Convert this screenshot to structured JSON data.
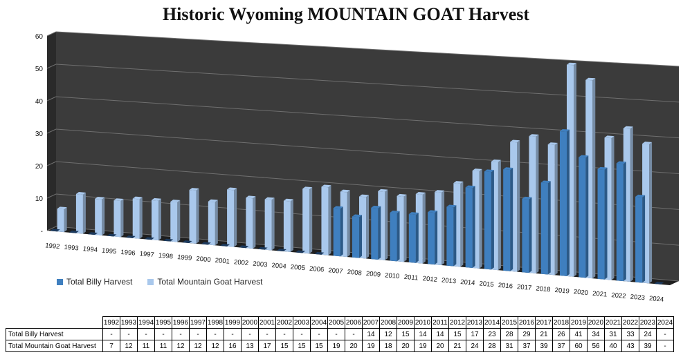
{
  "colors": {
    "billy": "#3f7fbf",
    "goat": "#a9c8ec",
    "wall": "#3b3b3b",
    "floor": "#1f1f1f",
    "grid": "#6f6f6f"
  },
  "chart_data": {
    "type": "bar",
    "title": "Historic Wyoming MOUNTAIN GOAT Harvest",
    "categories": [
      "1992",
      "1993",
      "1994",
      "1995",
      "1996",
      "1997",
      "1998",
      "1999",
      "2000",
      "2001",
      "2002",
      "2003",
      "2004",
      "2005",
      "2006",
      "2007",
      "2008",
      "2009",
      "2010",
      "2011",
      "2012",
      "2013",
      "2014",
      "2015",
      "2016",
      "2017",
      "2018",
      "2019",
      "2020",
      "2021",
      "2022",
      "2023",
      "2024"
    ],
    "ylim": [
      0,
      60
    ],
    "y_ticks": [
      "-",
      "10",
      "20",
      "30",
      "40",
      "50",
      "60"
    ],
    "grid": true,
    "legend_position": "bottom-left",
    "series": [
      {
        "name": "Total Billy Harvest",
        "values": [
          null,
          null,
          null,
          null,
          null,
          null,
          null,
          null,
          null,
          null,
          null,
          null,
          null,
          null,
          null,
          14,
          12,
          15,
          14,
          14,
          15,
          17,
          23,
          28,
          29,
          21,
          26,
          41,
          34,
          31,
          33,
          24,
          null
        ],
        "table_values": [
          "-",
          "-",
          "-",
          "-",
          "-",
          "-",
          "-",
          "-",
          "-",
          "-",
          "-",
          "-",
          "-",
          "-",
          "-",
          "14",
          "12",
          "15",
          "14",
          "14",
          "15",
          "17",
          "23",
          "28",
          "29",
          "21",
          "26",
          "41",
          "34",
          "31",
          "33",
          "24",
          "-"
        ]
      },
      {
        "name": "Total Mountain Goat Harvest",
        "values": [
          7,
          12,
          11,
          11,
          12,
          12,
          12,
          16,
          13,
          17,
          15,
          15,
          15,
          19,
          20,
          19,
          18,
          20,
          19,
          20,
          21,
          24,
          28,
          31,
          37,
          39,
          37,
          60,
          56,
          40,
          43,
          39,
          null
        ],
        "table_values": [
          "7",
          "12",
          "11",
          "11",
          "12",
          "12",
          "12",
          "16",
          "13",
          "17",
          "15",
          "15",
          "15",
          "19",
          "20",
          "19",
          "18",
          "20",
          "19",
          "20",
          "21",
          "24",
          "28",
          "31",
          "37",
          "39",
          "37",
          "60",
          "56",
          "40",
          "43",
          "39",
          "-"
        ]
      }
    ]
  }
}
